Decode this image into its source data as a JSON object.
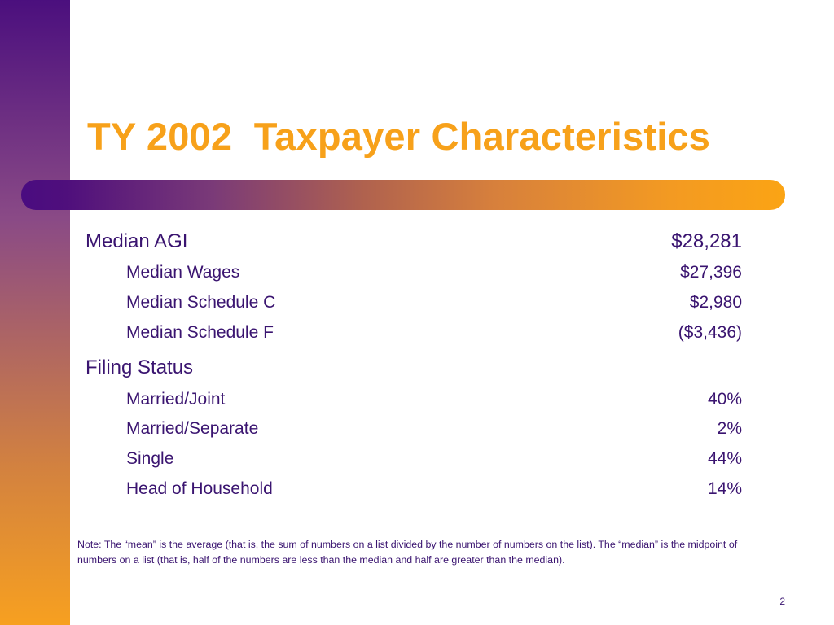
{
  "slide": {
    "title": "TY 2002  Taxpayer Characteristics",
    "page_number": "2",
    "colors": {
      "title": "#f7a11a",
      "text": "#3a1470",
      "band_top": "#4b0f7e",
      "band_bottom": "#f7a020"
    }
  },
  "income": {
    "heading": {
      "label": "Median AGI",
      "value": "$28,281"
    },
    "items": [
      {
        "label": "Median Wages",
        "value": "$27,396"
      },
      {
        "label": "Median Schedule C",
        "value": "$2,980"
      },
      {
        "label": "Median Schedule F",
        "value": "($3,436)"
      }
    ]
  },
  "filing": {
    "heading": {
      "label": "Filing Status",
      "value": ""
    },
    "items": [
      {
        "label": "Married/Joint",
        "value": "40%"
      },
      {
        "label": "Married/Separate",
        "value": "2%"
      },
      {
        "label": "Single",
        "value": "44%"
      },
      {
        "label": "Head of Household",
        "value": "14%"
      }
    ]
  },
  "note": "Note: The “mean” is the average (that is, the sum of numbers on a list divided by the number of numbers on the list).  The “median” is the midpoint of numbers on a list (that is, half of the numbers are less than the median and half are greater than the median)."
}
